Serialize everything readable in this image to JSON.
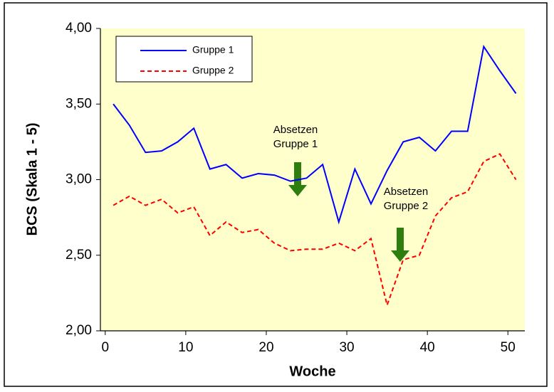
{
  "chart_data": {
    "type": "line",
    "y_label": "BCS (Skala 1 - 5)",
    "x_label": "Woche",
    "x": [
      1,
      3,
      5,
      7,
      9,
      11,
      13,
      15,
      17,
      19,
      21,
      23,
      25,
      27,
      29,
      31,
      33,
      35,
      37,
      39,
      41,
      43,
      45,
      47,
      49,
      51
    ],
    "series": [
      {
        "name": "Gruppe 1",
        "color": "#0000ff",
        "dash": "solid",
        "values": [
          3.5,
          3.36,
          3.18,
          3.19,
          3.25,
          3.34,
          3.07,
          3.1,
          3.01,
          3.04,
          3.03,
          2.99,
          3.01,
          3.1,
          2.72,
          3.07,
          2.84,
          3.06,
          3.25,
          3.28,
          3.19,
          3.32,
          3.32,
          3.88,
          3.72,
          3.57
        ]
      },
      {
        "name": "Gruppe 2",
        "color": "#ff0000",
        "dash": "dashed",
        "values": [
          2.83,
          2.89,
          2.83,
          2.87,
          2.78,
          2.82,
          2.63,
          2.72,
          2.65,
          2.67,
          2.58,
          2.53,
          2.54,
          2.54,
          2.58,
          2.53,
          2.61,
          2.17,
          2.47,
          2.5,
          2.76,
          2.88,
          2.92,
          3.12,
          3.17,
          3.0
        ]
      }
    ],
    "xlim": [
      -0.6,
      52.1
    ],
    "xticks": [
      0,
      10,
      20,
      30,
      40,
      50
    ],
    "ylim": [
      2,
      4
    ],
    "yticks": [
      {
        "value": 2,
        "label": "2,00"
      },
      {
        "value": 2.5,
        "label": "2,50"
      },
      {
        "value": 3,
        "label": "3,00"
      },
      {
        "value": 3.5,
        "label": "3,50"
      },
      {
        "value": 4,
        "label": "4,00"
      }
    ],
    "annotations": [
      {
        "lines": [
          "Absetzen",
          "Gruppe 1"
        ]
      },
      {
        "lines": [
          "Absetzen",
          "Gruppe 2"
        ]
      }
    ],
    "legend": "upper left",
    "plot_background": "#ffffcc"
  }
}
